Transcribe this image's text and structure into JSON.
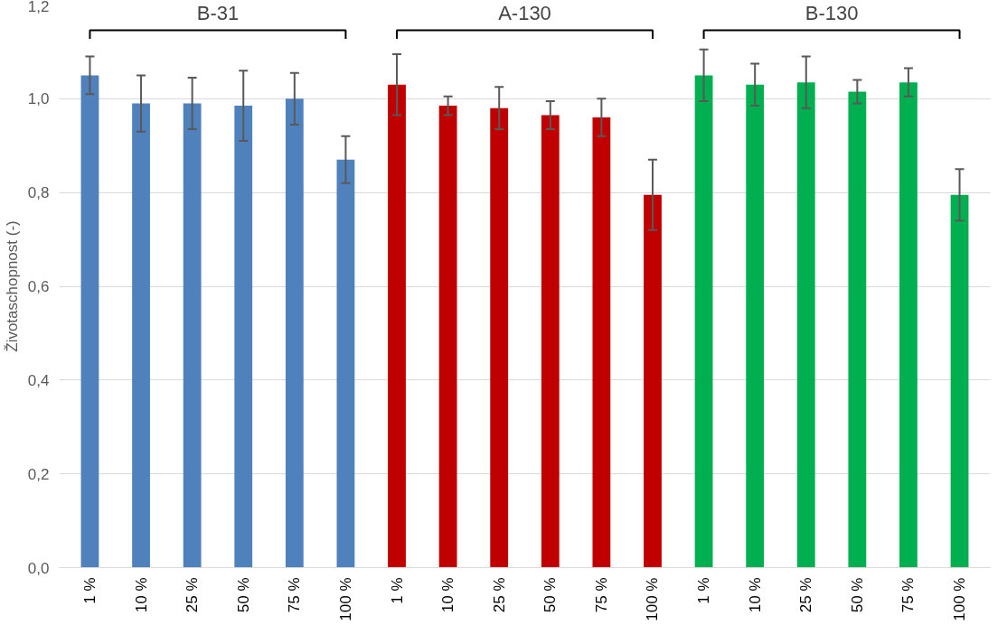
{
  "chart_data": {
    "type": "bar",
    "ylabel": "Životaschopnost (-)",
    "categories": [
      "1 %",
      "10 %",
      "25 %",
      "50 %",
      "75 %",
      "100 %",
      "1 %",
      "10 %",
      "25 %",
      "50 %",
      "75 %",
      "100 %",
      "1 %",
      "10 %",
      "25 %",
      "50 %",
      "75 %",
      "100 %"
    ],
    "values": [
      1.05,
      0.99,
      0.99,
      0.985,
      1.0,
      0.87,
      1.03,
      0.985,
      0.98,
      0.965,
      0.96,
      0.795,
      1.05,
      1.03,
      1.035,
      1.015,
      1.035,
      0.795
    ],
    "errors": [
      0.04,
      0.06,
      0.055,
      0.075,
      0.055,
      0.05,
      0.065,
      0.02,
      0.045,
      0.03,
      0.04,
      0.075,
      0.055,
      0.045,
      0.055,
      0.025,
      0.03,
      0.055
    ],
    "colors": [
      "#4f81bd",
      "#4f81bd",
      "#4f81bd",
      "#4f81bd",
      "#4f81bd",
      "#4f81bd",
      "#c00000",
      "#c00000",
      "#c00000",
      "#c00000",
      "#c00000",
      "#c00000",
      "#00b050",
      "#00b050",
      "#00b050",
      "#00b050",
      "#00b050",
      "#00b050"
    ],
    "annotations": [
      "B-31",
      "A-130",
      "B-130"
    ],
    "ylim": [
      0,
      1.2
    ],
    "yticks": [
      {
        "value": 0,
        "label": "0,0"
      },
      {
        "value": 0.2,
        "label": "0,2"
      },
      {
        "value": 0.4,
        "label": "0,4"
      },
      {
        "value": 0.6,
        "label": "0,6"
      },
      {
        "value": 0.8,
        "label": "0,8"
      },
      {
        "value": 1.0,
        "label": "1,0"
      },
      {
        "value": 1.2,
        "label": "1,2"
      }
    ],
    "grid": "y"
  }
}
